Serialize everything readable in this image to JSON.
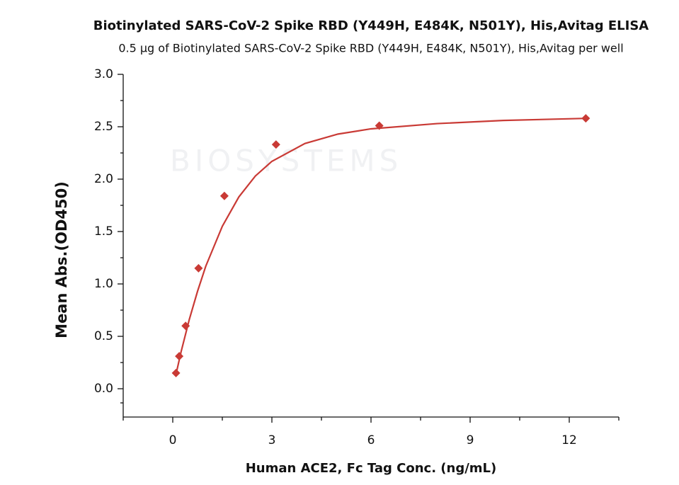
{
  "chart_data": {
    "type": "scatter",
    "title": "Biotinylated SARS-CoV-2 Spike RBD (Y449H, E484K, N501Y), His,Avitag ELISA",
    "subtitle": "0.5 μg of Biotinylated SARS-CoV-2 Spike RBD (Y449H, E484K, N501Y), His,Avitag per well",
    "x_label": "Human ACE2, Fc Tag Conc. (ng/mL)",
    "y_label": "Mean Abs.(OD450)",
    "watermark": "BIOSYSTEMS",
    "xlim": [
      -1.5,
      13.5
    ],
    "ylim": [
      -0.27,
      3.0
    ],
    "xticks": [
      0,
      3,
      6,
      9,
      12
    ],
    "yticks": [
      {
        "value": 0,
        "label": "0.0"
      },
      0.5,
      {
        "value": 1,
        "label": "1.0"
      },
      1.5,
      {
        "value": 2,
        "label": "2.0"
      },
      2.5,
      {
        "value": 3,
        "label": "3.0"
      }
    ],
    "points": {
      "color": "#c93a35",
      "x": [
        0.098,
        0.195,
        0.39,
        0.78,
        1.5625,
        3.125,
        6.25,
        12.5
      ],
      "values": [
        0.15,
        0.31,
        0.6,
        1.15,
        1.84,
        2.33,
        2.51,
        2.58
      ]
    },
    "fit": {
      "color": "#c93a35",
      "x": [
        0.1,
        0.25,
        0.5,
        0.75,
        1,
        1.5,
        2,
        2.5,
        3,
        4,
        5,
        6,
        8,
        10,
        12.5
      ],
      "values": [
        0.14,
        0.35,
        0.66,
        0.93,
        1.17,
        1.55,
        1.83,
        2.03,
        2.17,
        2.34,
        2.43,
        2.48,
        2.53,
        2.56,
        2.58
      ]
    }
  }
}
